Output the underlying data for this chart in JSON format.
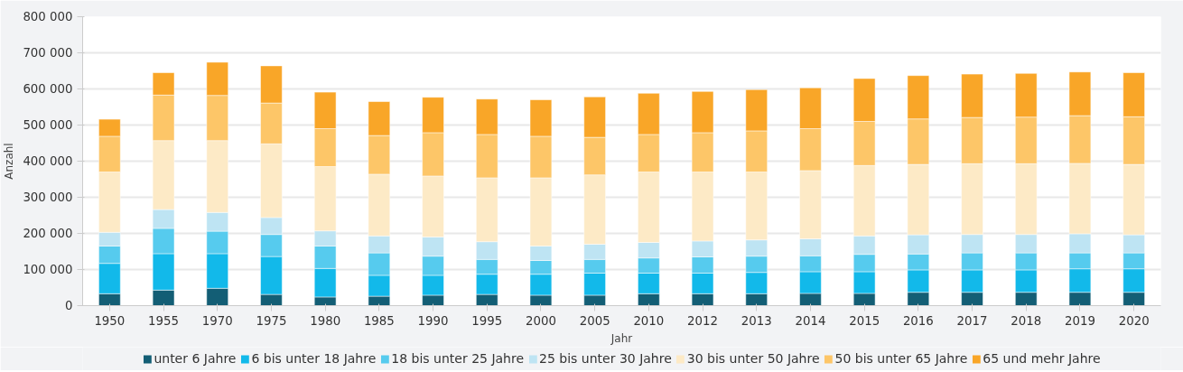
{
  "chart_data": {
    "type": "bar",
    "stacked": true,
    "xlabel": "Jahr",
    "ylabel": "Anzahl",
    "categories": [
      "1950",
      "1955",
      "1970",
      "1975",
      "1980",
      "1985",
      "1990",
      "1995",
      "2000",
      "2005",
      "2010",
      "2012",
      "2013",
      "2014",
      "2015",
      "2016",
      "2017",
      "2018",
      "2019",
      "2020"
    ],
    "series": [
      {
        "name": "unter 6 Jahre",
        "color": "#135e75",
        "values": [
          33000,
          43000,
          48000,
          31000,
          24000,
          26000,
          29000,
          31000,
          29000,
          29000,
          33000,
          33000,
          33000,
          34000,
          34000,
          37000,
          37000,
          37000,
          37000,
          37000
        ]
      },
      {
        "name": "6 bis unter 18 Jahre",
        "color": "#12b9ea",
        "values": [
          84000,
          101000,
          96000,
          105000,
          79000,
          58000,
          55000,
          56000,
          58000,
          61000,
          57000,
          57000,
          59000,
          60000,
          60000,
          62000,
          62000,
          62000,
          65000,
          65000
        ]
      },
      {
        "name": "18 bis unter 25 Jahre",
        "color": "#56cbee",
        "values": [
          48000,
          70000,
          62000,
          61000,
          62000,
          62000,
          53000,
          41000,
          38000,
          38000,
          42000,
          45000,
          45000,
          44000,
          48000,
          44000,
          47000,
          47000,
          44000,
          44000
        ]
      },
      {
        "name": "25 bis unter 30 Jahre",
        "color": "#bee4f3",
        "values": [
          38000,
          52000,
          52000,
          47000,
          42000,
          47000,
          53000,
          49000,
          40000,
          42000,
          43000,
          44000,
          45000,
          47000,
          51000,
          53000,
          51000,
          51000,
          53000,
          50000
        ]
      },
      {
        "name": "30 bis unter 50 Jahre",
        "color": "#fdeac6",
        "values": [
          167000,
          191000,
          199000,
          204000,
          178000,
          171000,
          169000,
          177000,
          189000,
          192000,
          195000,
          191000,
          188000,
          189000,
          195000,
          195000,
          196000,
          196000,
          195000,
          195000
        ]
      },
      {
        "name": "50 bis unter 65 Jahre",
        "color": "#fdc668",
        "values": [
          99000,
          126000,
          125000,
          113000,
          105000,
          107000,
          120000,
          120000,
          115000,
          104000,
          104000,
          109000,
          114000,
          116000,
          122000,
          126000,
          128000,
          129000,
          132000,
          132000
        ]
      },
      {
        "name": "65 und mehr Jahre",
        "color": "#f9a628",
        "values": [
          47000,
          62000,
          92000,
          103000,
          101000,
          94000,
          98000,
          98000,
          101000,
          112000,
          114000,
          114000,
          114000,
          113000,
          119000,
          120000,
          120000,
          121000,
          121000,
          122000
        ]
      }
    ],
    "ylim": [
      0,
      800000
    ],
    "yticks": [
      {
        "value": 0,
        "label": "0"
      },
      {
        "value": 100000,
        "label": "100 000"
      },
      {
        "value": 200000,
        "label": "200 000"
      },
      {
        "value": 300000,
        "label": "300 000"
      },
      {
        "value": 400000,
        "label": "400 000"
      },
      {
        "value": 500000,
        "label": "500 000"
      },
      {
        "value": 600000,
        "label": "600 000"
      },
      {
        "value": 700000,
        "label": "700 000"
      },
      {
        "value": 800000,
        "label": "800 000"
      }
    ],
    "grid": "y",
    "legend": "bottom"
  }
}
